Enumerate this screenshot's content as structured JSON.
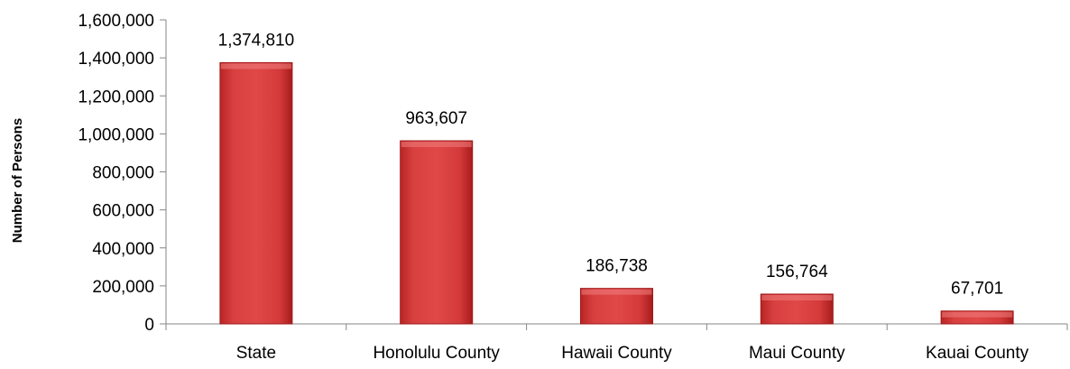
{
  "chart_data": {
    "type": "bar",
    "title": "",
    "xlabel": "",
    "ylabel": "Number of Persons",
    "categories": [
      "State",
      "Honolulu County",
      "Hawaii County",
      "Maui County",
      "Kauai County"
    ],
    "values": [
      1374810,
      963607,
      186738,
      156764,
      67701
    ],
    "data_labels": [
      "1,374,810",
      "963,607",
      "186,738",
      "156,764",
      "67,701"
    ],
    "ylim": [
      0,
      1600000
    ],
    "yticks": [
      0,
      200000,
      400000,
      600000,
      800000,
      1000000,
      1200000,
      1400000,
      1600000
    ],
    "ytick_labels": [
      "0",
      "200,000",
      "400,000",
      "600,000",
      "800,000",
      "1,000,000",
      "1,200,000",
      "1,400,000",
      "1,600,000"
    ],
    "grid": false,
    "legend": "none",
    "bar_color": "#d63a3a",
    "bar_edge_color": "#a01818"
  }
}
